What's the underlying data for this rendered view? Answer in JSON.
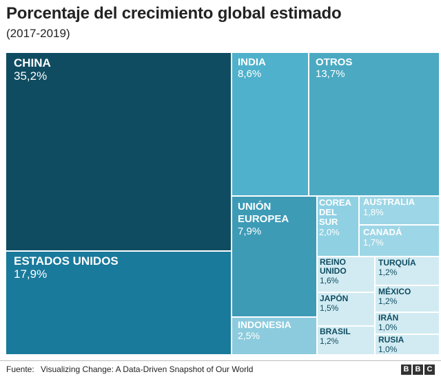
{
  "header": {
    "title": "Porcentaje del crecimiento global estimado",
    "subtitle": "(2017-2019)"
  },
  "chart_data": {
    "type": "treemap",
    "title": "Porcentaje del crecimiento global estimado",
    "subtitle": "(2017-2019)",
    "unit": "%",
    "items": [
      {
        "name": "CHINA",
        "value": 35.2,
        "label": "35,2%",
        "color": "#0f4c61"
      },
      {
        "name": "ESTADOS UNIDOS",
        "value": 17.9,
        "label": "17,9%",
        "color": "#1a7a9c"
      },
      {
        "name": "INDIA",
        "value": 8.6,
        "label": "8,6%",
        "color": "#4fb1cb"
      },
      {
        "name": "OTROS",
        "value": 13.7,
        "label": "13,7%",
        "color": "#4ba9c2"
      },
      {
        "name": "UNIÓN EUROPEA",
        "value": 7.9,
        "label": "7,9%",
        "color": "#3d9bb6"
      },
      {
        "name": "INDONESIA",
        "value": 2.5,
        "label": "2,5%",
        "color": "#8ccbdd"
      },
      {
        "name": "COREA DEL SUR",
        "value": 2.0,
        "label": "2,0%",
        "color": "#8fd0e2"
      },
      {
        "name": "AUSTRALIA",
        "value": 1.8,
        "label": "1,8%",
        "color": "#9dd6e6"
      },
      {
        "name": "CANADÁ",
        "value": 1.7,
        "label": "1,7%",
        "color": "#9dd6e6"
      },
      {
        "name": "REINO UNIDO",
        "value": 1.6,
        "label": "1,6%",
        "color": "#d2ebf2"
      },
      {
        "name": "JAPÓN",
        "value": 1.5,
        "label": "1,5%",
        "color": "#d2ebf2"
      },
      {
        "name": "BRASIL",
        "value": 1.2,
        "label": "1,2%",
        "color": "#d2ebf2"
      },
      {
        "name": "TURQUÍA",
        "value": 1.2,
        "label": "1,2%",
        "color": "#d2ebf2"
      },
      {
        "name": "MÉXICO",
        "value": 1.2,
        "label": "1,2%",
        "color": "#d2ebf2"
      },
      {
        "name": "IRÁN",
        "value": 1.0,
        "label": "1,0%",
        "color": "#d2ebf2"
      },
      {
        "name": "RUSIA",
        "value": 1.0,
        "label": "1,0%",
        "color": "#d2ebf2"
      }
    ]
  },
  "footer": {
    "source_label": "Fuente:",
    "source_text": "Visualizing Change: A Data-Driven Snapshot of Our World",
    "logo_letters": [
      "B",
      "B",
      "C"
    ]
  }
}
